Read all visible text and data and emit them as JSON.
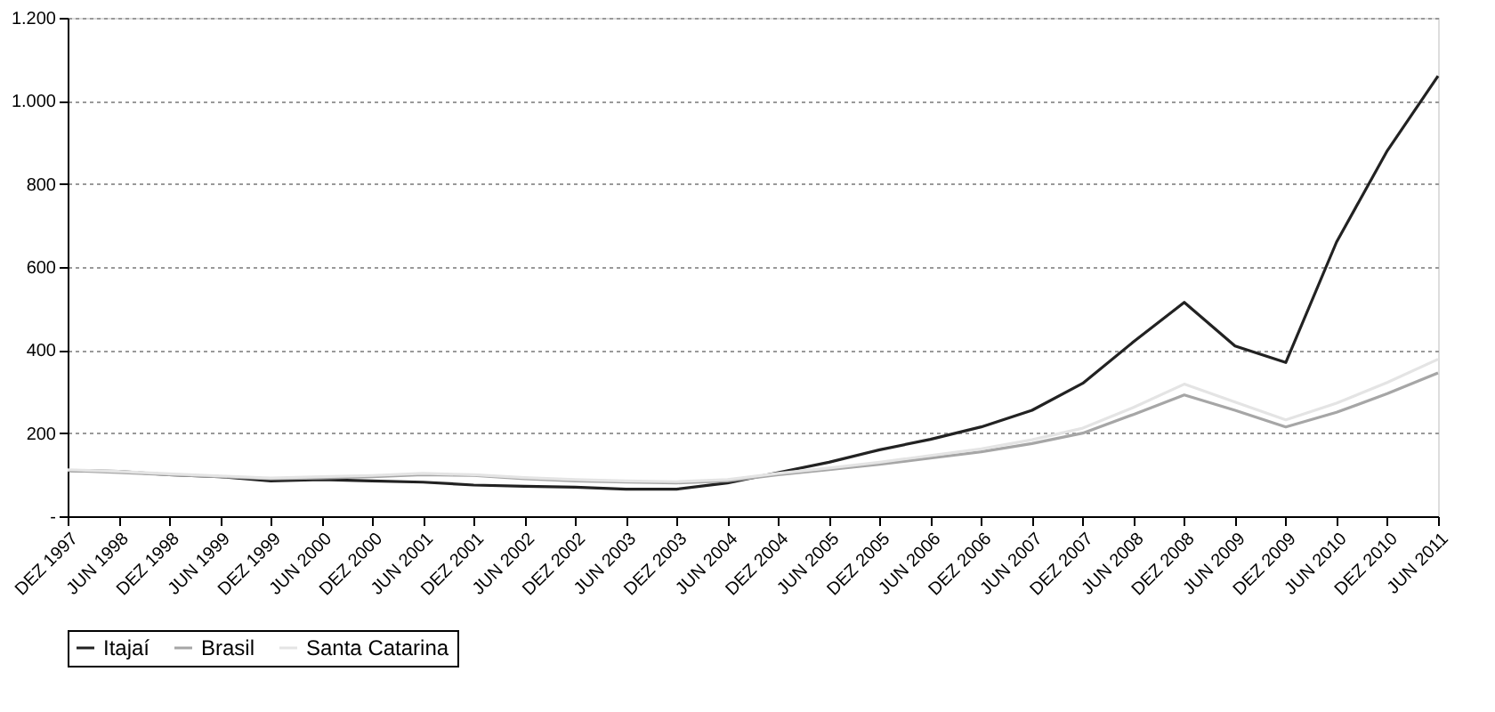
{
  "chart_data": {
    "type": "line",
    "categories": [
      "DEZ 1997",
      "JUN 1998",
      "DEZ 1998",
      "JUN 1999",
      "DEZ 1999",
      "JUN 2000",
      "DEZ 2000",
      "JUN 2001",
      "DEZ 2001",
      "JUN 2002",
      "DEZ 2002",
      "JUN 2003",
      "DEZ 2003",
      "JUN 2004",
      "DEZ 2004",
      "JUN 2005",
      "DEZ 2005",
      "JUN 2006",
      "DEZ 2006",
      "JUN 2007",
      "DEZ 2007",
      "JUN 2008",
      "DEZ 2008",
      "JUN 2009",
      "DEZ 2009",
      "JUN 2010",
      "DEZ 2010",
      "JUN 2011"
    ],
    "series": [
      {
        "name": "Itajaí",
        "color": "#222222",
        "values": [
          110,
          108,
          100,
          95,
          85,
          88,
          85,
          82,
          75,
          72,
          70,
          65,
          65,
          80,
          105,
          130,
          160,
          185,
          215,
          255,
          320,
          420,
          515,
          410,
          370,
          660,
          880,
          1060
        ]
      },
      {
        "name": "Brasil",
        "color": "#a6a6a6",
        "values": [
          110,
          105,
          100,
          95,
          90,
          92,
          95,
          100,
          98,
          90,
          85,
          82,
          80,
          85,
          100,
          112,
          125,
          140,
          155,
          175,
          200,
          245,
          292,
          255,
          215,
          250,
          295,
          345
        ]
      },
      {
        "name": "Santa Catarina",
        "color": "#e4e4e4",
        "values": [
          112,
          108,
          102,
          97,
          92,
          95,
          98,
          103,
          100,
          93,
          88,
          85,
          83,
          88,
          103,
          116,
          130,
          146,
          162,
          184,
          212,
          262,
          318,
          275,
          232,
          272,
          322,
          378
        ]
      }
    ],
    "ylim": [
      0,
      1200
    ],
    "yticks": [
      {
        "value": 0,
        "label": "-"
      },
      200,
      400,
      600,
      800,
      {
        "value": 1000,
        "label": "1.000"
      },
      {
        "value": 1200,
        "label": "1.200"
      }
    ],
    "grid": "y",
    "legend": "bottom",
    "marker": "none",
    "line_style": "solid"
  }
}
